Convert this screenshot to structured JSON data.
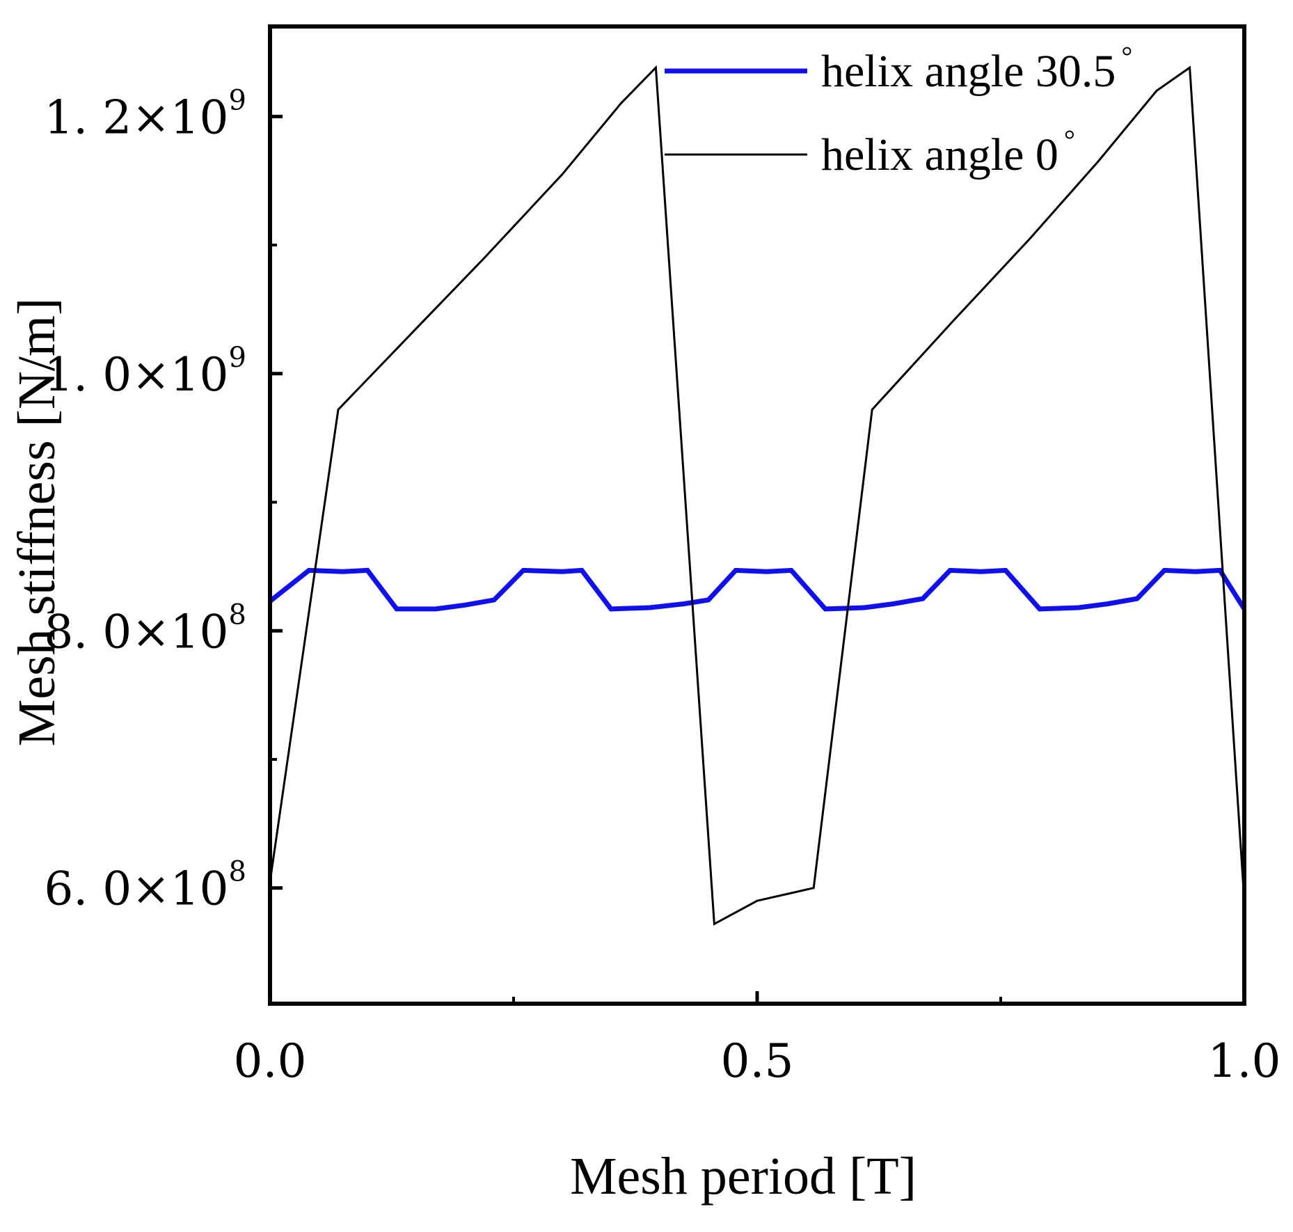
{
  "chart_data": {
    "type": "line",
    "title": "",
    "xlabel": "Mesh period [T]",
    "ylabel": "Mesh stiffness [N/m]",
    "xlim": [
      0.0,
      1.0
    ],
    "ylim": [
      510000000,
      1270000000
    ],
    "x_ticks": [
      {
        "value": 0.0,
        "label": "0.0"
      },
      {
        "value": 0.5,
        "label": "0.5"
      },
      {
        "value": 1.0,
        "label": "1.0"
      }
    ],
    "x_minor_ticks": [
      0.25,
      0.75
    ],
    "y_ticks": [
      {
        "value": 600000000,
        "mantissa": "6.",
        "mant_right": "0",
        "exp": "8"
      },
      {
        "value": 800000000,
        "mantissa": "8.",
        "mant_right": "0",
        "exp": "8"
      },
      {
        "value": 1000000000,
        "mantissa": "1.",
        "mant_right": "0",
        "exp": "9"
      },
      {
        "value": 1200000000,
        "mantissa": "1.",
        "mant_right": "2",
        "exp": "9"
      }
    ],
    "y_minor_ticks": [
      700000000,
      900000000,
      1100000000
    ],
    "tick_times": "×10",
    "legend_position": "top-right",
    "series": [
      {
        "name": "helix angle 30.5",
        "degree_mark": "°",
        "color": "#1010ee",
        "points": [
          [
            0.0,
            823000000
          ],
          [
            0.04,
            847000000
          ],
          [
            0.075,
            846000000
          ],
          [
            0.1,
            847000000
          ],
          [
            0.13,
            817000000
          ],
          [
            0.17,
            817000000
          ],
          [
            0.2,
            820000000
          ],
          [
            0.23,
            824000000
          ],
          [
            0.26,
            847000000
          ],
          [
            0.3,
            846000000
          ],
          [
            0.32,
            847000000
          ],
          [
            0.35,
            817000000
          ],
          [
            0.39,
            818000000
          ],
          [
            0.425,
            821000000
          ],
          [
            0.45,
            824000000
          ],
          [
            0.478,
            847000000
          ],
          [
            0.51,
            846000000
          ],
          [
            0.535,
            847000000
          ],
          [
            0.57,
            817000000
          ],
          [
            0.61,
            818000000
          ],
          [
            0.64,
            821000000
          ],
          [
            0.67,
            825000000
          ],
          [
            0.698,
            847000000
          ],
          [
            0.73,
            846000000
          ],
          [
            0.755,
            847000000
          ],
          [
            0.79,
            817000000
          ],
          [
            0.83,
            818000000
          ],
          [
            0.86,
            821000000
          ],
          [
            0.89,
            825000000
          ],
          [
            0.918,
            847000000
          ],
          [
            0.95,
            846000000
          ],
          [
            0.975,
            847000000
          ],
          [
            1.0,
            817000000
          ]
        ]
      },
      {
        "name": "helix angle 0",
        "degree_mark": "°",
        "color": "#000000",
        "points": [
          [
            0.0,
            605000000
          ],
          [
            0.07,
            972000000
          ],
          [
            0.15,
            1035000000
          ],
          [
            0.22,
            1090000000
          ],
          [
            0.3,
            1155000000
          ],
          [
            0.36,
            1210000000
          ],
          [
            0.396,
            1238000000
          ],
          [
            0.456,
            572000000
          ],
          [
            0.5,
            590000000
          ],
          [
            0.558,
            600000000
          ],
          [
            0.618,
            972000000
          ],
          [
            0.7,
            1040000000
          ],
          [
            0.78,
            1105000000
          ],
          [
            0.85,
            1165000000
          ],
          [
            0.91,
            1220000000
          ],
          [
            0.944,
            1238000000
          ],
          [
            1.0,
            590000000
          ]
        ]
      }
    ]
  }
}
